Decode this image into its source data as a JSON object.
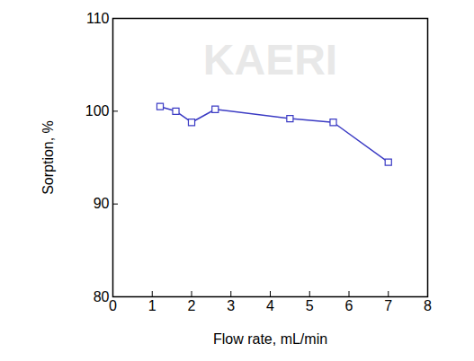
{
  "chart_data": {
    "type": "line",
    "x_label": "Flow rate, mL/min",
    "y_label": "Sorption, %",
    "annotations": [
      "KAERI"
    ],
    "x": [
      1.2,
      1.6,
      2.0,
      2.6,
      4.5,
      5.6,
      7.0
    ],
    "values": [
      100.5,
      100.0,
      98.8,
      100.2,
      99.2,
      98.8,
      94.5
    ],
    "color": "#3b3bc4",
    "marker": "square",
    "line_style": "solid",
    "xlim": [
      0,
      8
    ],
    "xticks": [
      0,
      1,
      2,
      3,
      4,
      5,
      6,
      7,
      8
    ],
    "ylim": [
      80,
      110
    ],
    "yticks": [
      80,
      90,
      100,
      110
    ],
    "grid": false
  }
}
